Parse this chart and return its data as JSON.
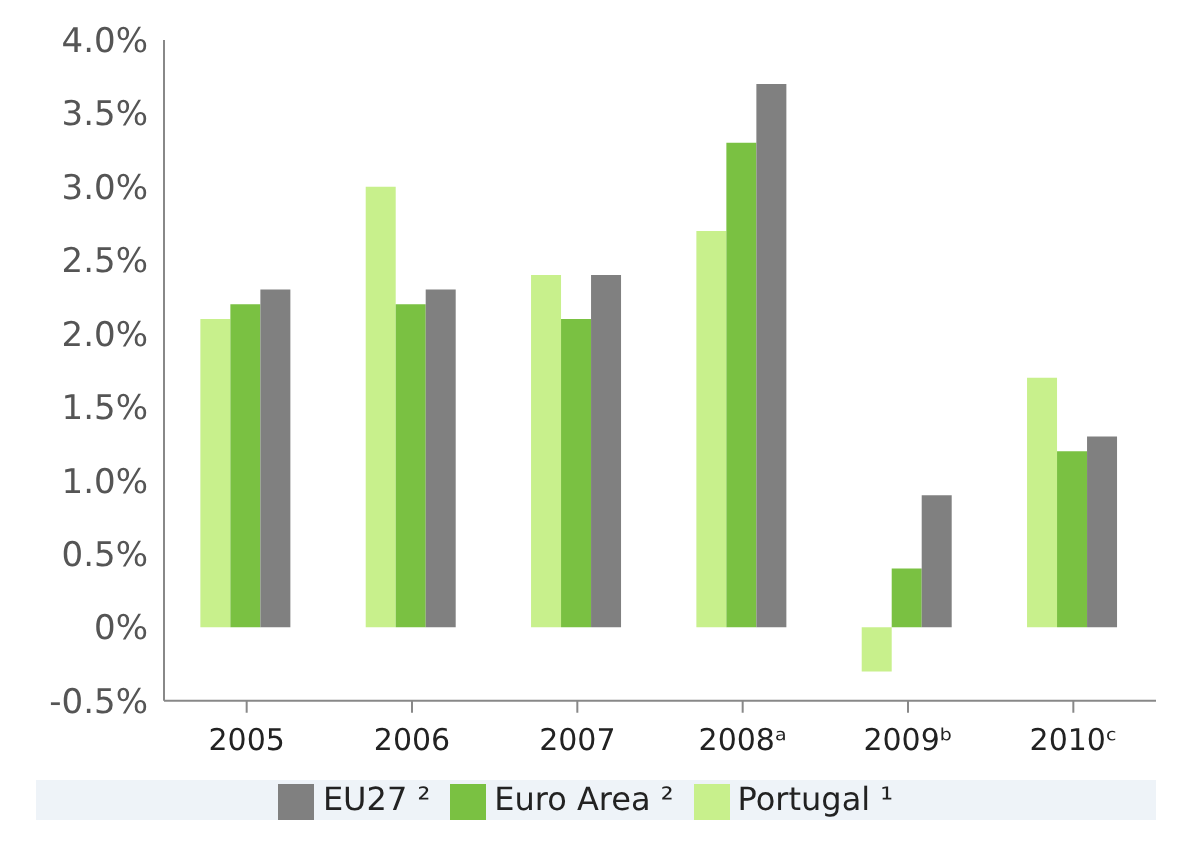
{
  "chart_data": {
    "type": "bar",
    "categories": [
      "2005",
      "2006",
      "2007",
      "2008ᵃ",
      "2009ᵇ",
      "2010ᶜ"
    ],
    "series": [
      {
        "name": "Portugal ¹",
        "color": "#c8f08c",
        "values": [
          2.1,
          3.0,
          2.4,
          2.7,
          -0.3,
          1.7
        ]
      },
      {
        "name": "Euro Area ²",
        "color": "#7ac142",
        "values": [
          2.2,
          2.2,
          2.1,
          3.3,
          0.4,
          1.2
        ]
      },
      {
        "name": "EU27 ²",
        "color": "#808080",
        "values": [
          2.3,
          2.3,
          2.4,
          3.7,
          0.9,
          1.3
        ]
      }
    ],
    "ylim": [
      -0.5,
      4.0
    ],
    "yticks": [
      {
        "value": -0.5,
        "label": "-0.5%"
      },
      {
        "value": 0,
        "label": "0%"
      },
      {
        "value": 0.5,
        "label": "0.5%"
      },
      {
        "value": 1,
        "label": "1.0%"
      },
      {
        "value": 1.5,
        "label": "1.5%"
      },
      {
        "value": 2,
        "label": "2.0%"
      },
      {
        "value": 2.5,
        "label": "2.5%"
      },
      {
        "value": 3,
        "label": "3.0%"
      },
      {
        "value": 3.5,
        "label": "3.5%"
      },
      {
        "value": 4,
        "label": "4.0%"
      }
    ],
    "grid": false,
    "legend": "bottom"
  }
}
